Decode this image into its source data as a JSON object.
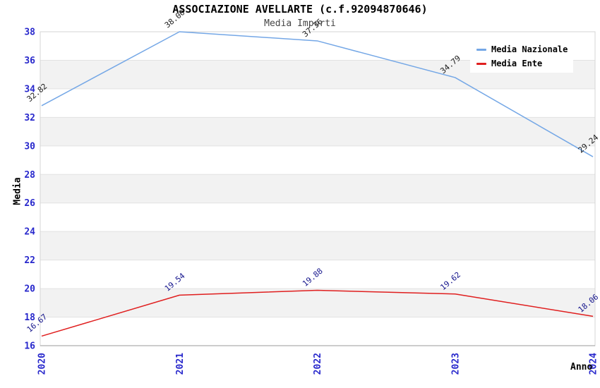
{
  "chart_data": {
    "type": "line",
    "title": "ASSOCIAZIONE AVELLARTE (c.f.92094870646)",
    "subtitle": "Media Importi",
    "xlabel": "Anno",
    "ylabel": "Media",
    "x_categories": [
      "2020",
      "2021",
      "2022",
      "2023",
      "2024"
    ],
    "series": [
      {
        "name": "Media Nazionale",
        "color": "#74a7e6",
        "label_color": "#1a1a1a",
        "values": [
          32.82,
          38.0,
          37.36,
          34.79,
          29.24
        ]
      },
      {
        "name": "Media Ente",
        "color": "#e01f1f",
        "label_color": "#14148c",
        "values": [
          16.67,
          19.54,
          19.88,
          19.62,
          18.06
        ]
      }
    ],
    "ylim": [
      16,
      38
    ],
    "ytick_step": 2,
    "yticks": [
      16,
      18,
      20,
      22,
      24,
      26,
      28,
      30,
      32,
      34,
      36,
      38
    ],
    "legend_position": "top-right",
    "grid": "alternating-horizontal-bands",
    "data_label_format": "0.00",
    "styles": {
      "tick_label_color": "#2828cc",
      "band_color": "#f2f2f2",
      "gridline_color": "#e2e2e2",
      "border_color": "#d5d5d5",
      "axis_color": "#9a9a9a"
    }
  }
}
